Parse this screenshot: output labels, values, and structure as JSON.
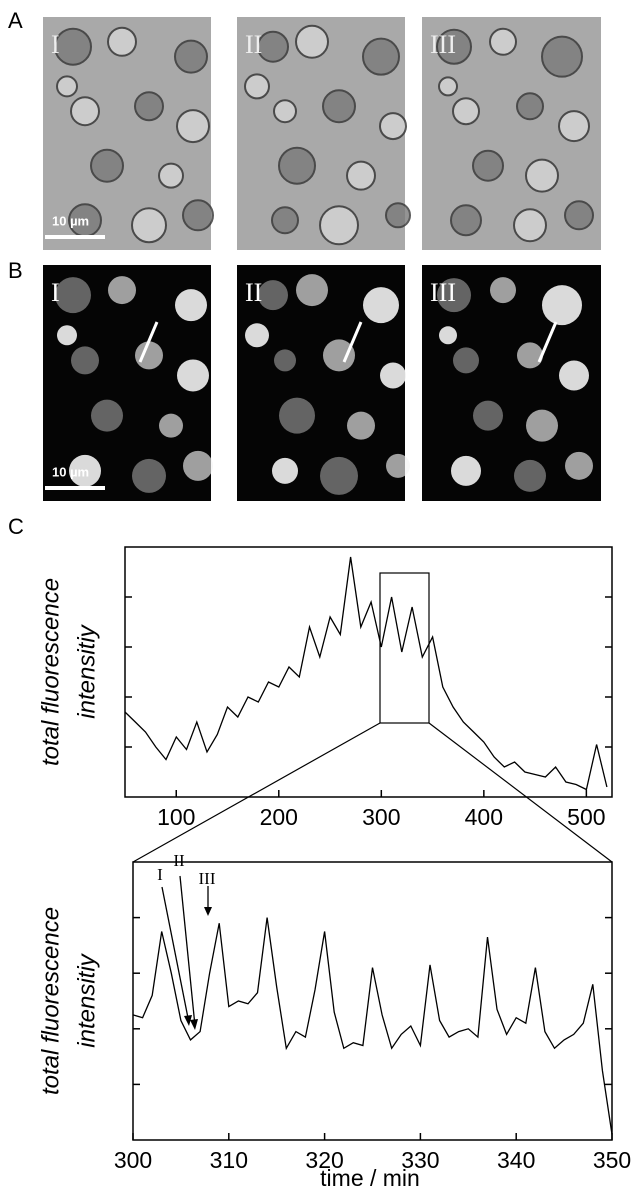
{
  "panels": {
    "A": {
      "letter": "A",
      "images": [
        "I",
        "II",
        "III"
      ],
      "scale_bar": "10 µm"
    },
    "B": {
      "letter": "B",
      "images": [
        "I",
        "II",
        "III"
      ],
      "scale_bar": "10 µm"
    },
    "C": {
      "letter": "C"
    }
  },
  "chart_data": [
    {
      "type": "line",
      "y_label": [
        "total fluorescence",
        "intensitiy"
      ],
      "x": [
        50,
        60,
        70,
        80,
        90,
        100,
        110,
        120,
        130,
        140,
        150,
        160,
        170,
        180,
        190,
        200,
        210,
        220,
        230,
        240,
        250,
        260,
        270,
        280,
        290,
        300,
        310,
        320,
        330,
        340,
        350,
        360,
        370,
        380,
        390,
        400,
        410,
        420,
        430,
        440,
        450,
        460,
        470,
        480,
        490,
        500,
        510,
        520
      ],
      "series": [
        {
          "color": "#000000",
          "values": [
            3.4,
            3.0,
            2.6,
            2.0,
            1.5,
            2.4,
            1.9,
            3.0,
            1.8,
            2.5,
            3.6,
            3.2,
            4.0,
            3.8,
            4.6,
            4.4,
            5.2,
            4.8,
            6.8,
            5.6,
            7.2,
            6.5,
            9.6,
            6.8,
            7.8,
            6.0,
            8.0,
            5.8,
            7.6,
            5.6,
            6.4,
            4.4,
            3.6,
            3.0,
            2.6,
            2.2,
            1.6,
            1.2,
            1.4,
            1.0,
            0.9,
            0.8,
            1.2,
            0.6,
            0.5,
            0.3,
            2.1,
            0.4
          ]
        }
      ],
      "xlim": [
        50,
        525
      ],
      "ylim": [
        0,
        10
      ],
      "xticks": [
        100,
        200,
        300,
        400,
        500
      ],
      "yticks": [
        2,
        4,
        6,
        8
      ]
    },
    {
      "type": "line",
      "y_label": [
        "total fluorescence",
        "intensitiy"
      ],
      "x_label": "time / min",
      "annotations": [
        "I",
        "II",
        "III"
      ],
      "x": [
        300,
        301,
        302,
        303,
        304,
        305,
        306,
        307,
        308,
        309,
        310,
        311,
        312,
        313,
        314,
        315,
        316,
        317,
        318,
        319,
        320,
        321,
        322,
        323,
        324,
        325,
        326,
        327,
        328,
        329,
        330,
        331,
        332,
        333,
        334,
        335,
        336,
        337,
        338,
        339,
        340,
        341,
        342,
        343,
        344,
        345,
        346,
        347,
        348,
        349,
        350
      ],
      "series": [
        {
          "color": "#000000",
          "values": [
            4.5,
            4.4,
            5.2,
            7.5,
            6.0,
            4.3,
            3.6,
            3.9,
            6.0,
            7.8,
            4.8,
            5.0,
            4.9,
            5.3,
            8.0,
            5.5,
            3.3,
            3.9,
            3.7,
            5.4,
            7.5,
            4.6,
            3.3,
            3.5,
            3.4,
            6.2,
            4.5,
            3.3,
            3.8,
            4.1,
            3.4,
            6.3,
            4.3,
            3.7,
            3.9,
            4.0,
            3.7,
            7.3,
            4.7,
            3.8,
            4.4,
            4.2,
            6.2,
            3.9,
            3.3,
            3.6,
            3.8,
            4.2,
            5.6,
            2.5,
            0.2
          ]
        }
      ],
      "xlim": [
        300,
        350
      ],
      "ylim": [
        0,
        10
      ],
      "xticks": [
        300,
        310,
        320,
        330,
        340,
        350
      ],
      "yticks": [
        2,
        4,
        6,
        8
      ]
    }
  ]
}
